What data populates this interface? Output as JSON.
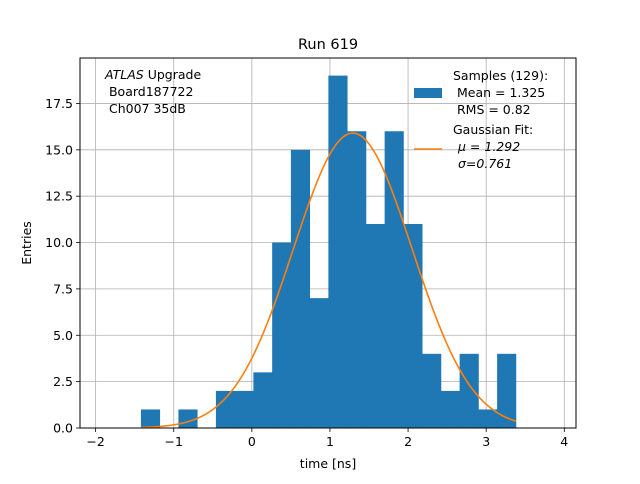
{
  "chart_data": {
    "type": "bar",
    "title": "Run 619",
    "xlabel": "time [ns]",
    "ylabel": "Entries",
    "xlim": [
      -2.2,
      4.15
    ],
    "ylim": [
      0,
      19.95
    ],
    "grid": true,
    "x_ticks": [
      -2,
      -1,
      0,
      1,
      2,
      3,
      4
    ],
    "x_tick_labels": [
      "−2",
      "−1",
      "0",
      "1",
      "2",
      "3",
      "4"
    ],
    "y_ticks": [
      0,
      2.5,
      5,
      7.5,
      10,
      12.5,
      15,
      17.5
    ],
    "y_tick_labels": [
      "0.0",
      "2.5",
      "5.0",
      "7.5",
      "10.0",
      "12.5",
      "15.0",
      "17.5"
    ],
    "bin_edges": [
      -1.42,
      -1.18,
      -0.94,
      -0.7,
      -0.46,
      -0.22,
      0.02,
      0.26,
      0.5,
      0.74,
      0.98,
      1.22,
      1.46,
      1.7,
      1.94,
      2.18,
      2.42,
      2.66,
      2.9,
      3.14,
      3.38
    ],
    "counts": [
      1,
      0,
      1,
      0,
      2,
      2,
      3,
      10,
      15,
      7,
      19,
      16,
      11,
      16,
      11,
      4,
      2,
      4,
      1,
      4
    ],
    "series": [
      {
        "name": "Samples (129):",
        "type": "histogram",
        "color": "#1f77b4"
      },
      {
        "name": "Gaussian Fit:",
        "type": "line",
        "color": "#ff7f0e",
        "mu": 1.292,
        "sigma": 0.761,
        "amplitude": 15.9,
        "x_range": [
          -1.42,
          3.38
        ]
      }
    ],
    "annotation": {
      "italic": "ATLAS",
      "line1_rest": " Upgrade",
      "line2": " Board187722",
      "line3": " Ch007 35dB"
    },
    "legend": {
      "placement": "top-right",
      "entries": [
        {
          "lines": [
            "Samples (129):",
            " Mean = 1.325",
            " RMS = 0.82"
          ]
        },
        {
          "lines": [
            "Gaussian Fit:",
            "μ = 1.292",
            "σ=0.761"
          ]
        }
      ]
    }
  }
}
